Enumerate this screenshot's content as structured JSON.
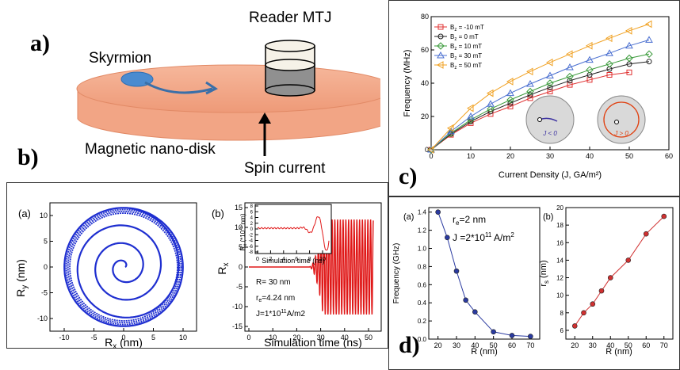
{
  "panel_a": {
    "label": "a)",
    "reader": "Reader MTJ",
    "skyrmion": "Skyrmion",
    "disk": "Magnetic nano-disk",
    "spin": "Spin current"
  },
  "panel_b": {
    "label": "b)",
    "sub_a": "(a)",
    "sub_b": "(b)",
    "ylabel_a": "R",
    "ylabel_a_sub": "y",
    "ylabel_a_unit": " (nm)",
    "xlabel_a": "R",
    "xlabel_a_sub": "x",
    "xlabel_a_unit": " (nm)",
    "ylabel_b": "R",
    "ylabel_b_sub": "x",
    "xlabel_b": "Simulation time (ns)",
    "inset_ylabel_main": "R",
    "inset_ylabel_sub": "x",
    "inset_ylabel_unit": " (*10",
    "inset_ylabel_exp": "-5",
    "inset_ylabel_end": " nm)",
    "inset_xlabel": "Simulation time (ns)",
    "anno_1": "R= 30 nm",
    "anno_2_main": "r",
    "anno_2_sub": "e",
    "anno_2_rest": "=4.24 nm",
    "anno_3_main": "J=1*10",
    "anno_3_exp": "11",
    "anno_3_rest": "A/m2",
    "ticks_a_x": [
      "-10",
      "-5",
      "0",
      "5",
      "10"
    ],
    "ticks_a_y": [
      "10",
      "5",
      "0",
      "-5",
      "-10"
    ],
    "ticks_b_x": [
      "0",
      "10",
      "20",
      "30",
      "40",
      "50"
    ],
    "ticks_b_y": [
      "15",
      "10",
      "5",
      "0",
      "-5",
      "-10",
      "-15"
    ],
    "ticks_inset_x": [
      "0",
      "2",
      "4",
      "6",
      "8",
      "10"
    ],
    "ticks_inset_y": [
      "8",
      "6",
      "4",
      "2",
      "0",
      "-2",
      "-4",
      "-6",
      "-8"
    ]
  },
  "chart_data": [
    {
      "type": "line",
      "panel": "c",
      "xlabel": "Current Density (J, GA/m²)",
      "ylabel": "Frequency (MHz)",
      "xlim": [
        0,
        60
      ],
      "ylim": [
        0,
        80
      ],
      "x_ticks": [
        "0",
        "10",
        "20",
        "30",
        "40",
        "50",
        "60"
      ],
      "y_ticks": [
        "80",
        "60",
        "40",
        "20",
        "0"
      ],
      "legend_position": "top-left",
      "inset_left": "J < 0",
      "inset_right": "J > 0",
      "series": [
        {
          "name": "B_z = -10 mT",
          "label_main": "B",
          "label_sub": "z",
          "label_rest": " = -10 mT",
          "marker": "square",
          "color": "#e03030",
          "x": [
            0,
            5,
            10,
            15,
            20,
            25,
            30,
            35,
            40,
            45,
            50
          ],
          "y": [
            0,
            9,
            16,
            21.5,
            26,
            31,
            35,
            39,
            42,
            45,
            46.5
          ]
        },
        {
          "name": "B_z = 0 mT",
          "label_main": "B",
          "label_sub": "z",
          "label_rest": " = 0 mT",
          "marker": "circle",
          "color": "#202020",
          "x": [
            0,
            5,
            10,
            15,
            20,
            25,
            30,
            35,
            40,
            45,
            50,
            55
          ],
          "y": [
            0,
            9.5,
            17,
            23,
            28,
            33,
            37.5,
            41.5,
            45,
            48.5,
            51.5,
            53
          ]
        },
        {
          "name": "B_z = 10 mT",
          "label_main": "B",
          "label_sub": "z",
          "label_rest": " = 10 mT",
          "marker": "diamond",
          "color": "#3a9a3a",
          "x": [
            0,
            5,
            10,
            15,
            20,
            25,
            30,
            35,
            40,
            45,
            50,
            55
          ],
          "y": [
            0,
            10,
            18,
            24.5,
            30,
            35,
            40,
            44,
            48,
            51.5,
            55,
            57.5
          ]
        },
        {
          "name": "B_z = 30 mT",
          "label_main": "B",
          "label_sub": "z",
          "label_rest": " = 30 mT",
          "marker": "triangle-up",
          "color": "#4a6fd0",
          "x": [
            0,
            5,
            10,
            15,
            20,
            25,
            30,
            35,
            40,
            45,
            50,
            55
          ],
          "y": [
            0,
            11,
            20,
            27.5,
            34,
            39.5,
            44.5,
            49.5,
            54,
            58,
            62.5,
            66
          ]
        },
        {
          "name": "B_z = 50 mT",
          "label_main": "B",
          "label_sub": "z",
          "label_rest": " = 50 mT",
          "marker": "triangle-left",
          "color": "#f0a020",
          "x": [
            0,
            5,
            10,
            15,
            20,
            25,
            30,
            35,
            40,
            45,
            50,
            55
          ],
          "y": [
            0,
            13,
            25,
            34,
            41,
            47,
            52.5,
            57.5,
            62.5,
            67,
            71.5,
            75.5
          ]
        }
      ]
    },
    {
      "type": "line",
      "panel": "d-a",
      "sub_label": "(a)",
      "xlabel": "R (nm)",
      "ylabel": "Frequency (GHz)",
      "xlim": [
        15,
        75
      ],
      "ylim": [
        0,
        1.45
      ],
      "x_ticks": [
        "20",
        "30",
        "40",
        "50",
        "60",
        "70"
      ],
      "y_ticks": [
        "1.4",
        "1.2",
        "1.0",
        "0.8",
        "0.6",
        "0.4",
        "0.2",
        "0.0"
      ],
      "anno_1_main": "r",
      "anno_1_sub": "e",
      "anno_1_rest": "=2 nm",
      "anno_2_main": "J =2*10",
      "anno_2_exp": "11",
      "anno_2_rest": " A/m",
      "anno_2_exp2": "2",
      "series": [
        {
          "color": "#2a3aa0",
          "x": [
            20,
            25,
            30,
            35,
            40,
            50,
            60,
            70
          ],
          "y": [
            1.4,
            1.12,
            0.75,
            0.43,
            0.3,
            0.08,
            0.04,
            0.03
          ]
        }
      ]
    },
    {
      "type": "line",
      "panel": "d-b",
      "sub_label": "(b)",
      "xlabel": "R (nm)",
      "ylabel_main": "r",
      "ylabel_sub": "s",
      "ylabel_rest": " (nm)",
      "xlim": [
        15,
        75
      ],
      "ylim": [
        5,
        20
      ],
      "x_ticks": [
        "20",
        "30",
        "40",
        "50",
        "60",
        "70"
      ],
      "y_ticks": [
        "20",
        "18",
        "16",
        "14",
        "12",
        "10",
        "8",
        "6"
      ],
      "series": [
        {
          "color": "#d03030",
          "x": [
            20,
            25,
            30,
            35,
            40,
            50,
            60,
            70
          ],
          "y": [
            6.5,
            8,
            9,
            10.5,
            12,
            14,
            17,
            19
          ]
        }
      ]
    }
  ]
}
